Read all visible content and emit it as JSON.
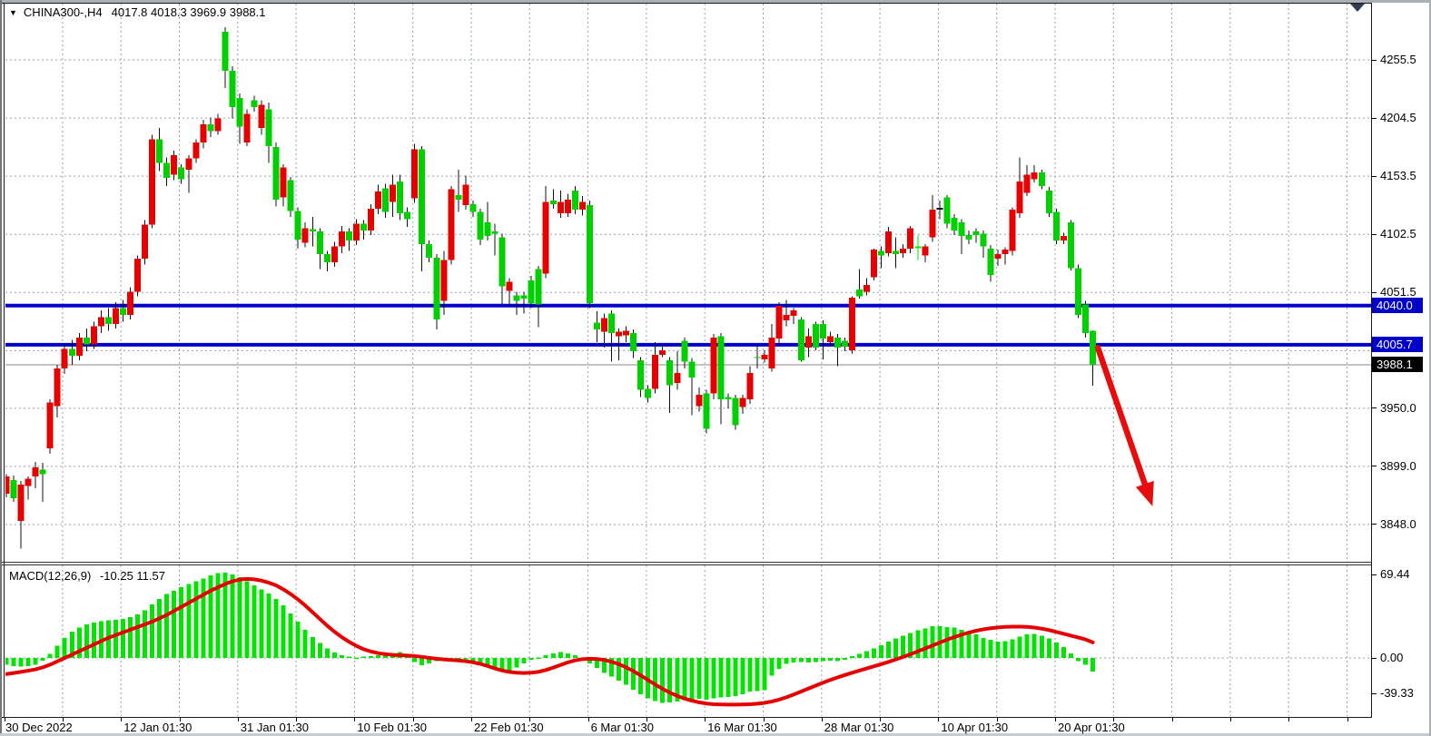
{
  "window": {
    "chart_title": {
      "symbol_period": "CHINA300-,H4",
      "ohlc": "4017.8 4018.3 3969.9 3988.1"
    },
    "indicator_label": {
      "name": "MACD(12,26,9)",
      "values": "-10.25 11.57"
    },
    "dropdown_triangle_icon": "▼"
  },
  "price_axis": {
    "labels": [
      {
        "text": "4255.5",
        "price": 4255.5
      },
      {
        "text": "4204.5",
        "price": 4204.5
      },
      {
        "text": "4153.5",
        "price": 4153.5
      },
      {
        "text": "4102.5",
        "price": 4102.5
      },
      {
        "text": "4051.5",
        "price": 4051.5
      },
      {
        "text": "3950.0",
        "price": 3950.0
      },
      {
        "text": "3899.0",
        "price": 3899.0
      },
      {
        "text": "3848.0",
        "price": 3848.0
      }
    ],
    "badges": [
      {
        "text": "4040.0",
        "price": 4040.0,
        "bg": "#0000C8",
        "fg": "#ffffff"
      },
      {
        "text": "4005.7",
        "price": 4005.7,
        "bg": "#0000C8",
        "fg": "#ffffff"
      },
      {
        "text": "3988.1",
        "price": 3988.1,
        "bg": "#000000",
        "fg": "#ffffff"
      }
    ]
  },
  "macd_axis": {
    "labels": [
      {
        "text": "69.44",
        "value": 69.44
      },
      {
        "text": "0.00",
        "value": 0.0
      },
      {
        "text": "-39.33",
        "value": -39.33
      }
    ]
  },
  "time_axis": {
    "origin_label": "30 Dec 2022",
    "tick_labels": [
      "12 Jan 01:30",
      "31 Jan 01:30",
      "10 Feb 01:30",
      "22 Feb 01:30",
      "6 Mar 01:30",
      "16 Mar 01:30",
      "28 Mar 01:30",
      "10 Apr 01:30",
      "20 Apr 01:30"
    ]
  },
  "chart_data": {
    "type": "candlestick",
    "symbol": "CHINA300-",
    "timeframe": "H4",
    "title": "CHINA300-,H4",
    "last_quote": {
      "open": 4017.8,
      "high": 4018.3,
      "low": 3969.9,
      "close": 3988.1
    },
    "ylim": [
      3814,
      4290
    ],
    "price_gridlines": [
      4255.5,
      4204.5,
      4153.5,
      4102.5,
      4051.5,
      4000.5,
      3950.0,
      3899.0,
      3848.0
    ],
    "grid": "dashed",
    "color_convention": "red body = bullish, green body = bearish (Chinese convention)",
    "horizontal_levels": [
      {
        "price": 4040.0,
        "color": "#0000C8"
      },
      {
        "price": 4005.7,
        "color": "#0000C8"
      }
    ],
    "current_price": 3988.1,
    "trend_arrow": {
      "from": {
        "index": 149.7,
        "price": 4003
      },
      "to": {
        "index": 157.2,
        "price": 3864
      },
      "color": "#E60D0D",
      "direction": "down"
    },
    "candles": [
      [
        3875,
        3892,
        3872,
        3890
      ],
      [
        3887,
        3891,
        3868,
        3871
      ],
      [
        3851,
        3886,
        3827,
        3883
      ],
      [
        3882,
        3890,
        3870,
        3888
      ],
      [
        3890,
        3903,
        3880,
        3898
      ],
      [
        3896,
        3902,
        3868,
        3892
      ],
      [
        3915,
        3958,
        3910,
        3955
      ],
      [
        3952,
        3988,
        3942,
        3985
      ],
      [
        3985,
        4006,
        3980,
        4002
      ],
      [
        4002,
        4010,
        3988,
        3996
      ],
      [
        3996,
        4016,
        3992,
        4012
      ],
      [
        4012,
        4020,
        4000,
        4006
      ],
      [
        4006,
        4026,
        4002,
        4022
      ],
      [
        4022,
        4036,
        4016,
        4030
      ],
      [
        4030,
        4038,
        4018,
        4024
      ],
      [
        4024,
        4043,
        4020,
        4038
      ],
      [
        4038,
        4045,
        4026,
        4032
      ],
      [
        4032,
        4056,
        4028,
        4052
      ],
      [
        4052,
        4084,
        4048,
        4081
      ],
      [
        4081,
        4115,
        4076,
        4111
      ],
      [
        4111,
        4190,
        4108,
        4186
      ],
      [
        4186,
        4196,
        4158,
        4165
      ],
      [
        4165,
        4170,
        4145,
        4152
      ],
      [
        4155,
        4176,
        4150,
        4172
      ],
      [
        4161,
        4164,
        4147,
        4151
      ],
      [
        4159,
        4172,
        4139,
        4169
      ],
      [
        4169,
        4186,
        4165,
        4183
      ],
      [
        4183,
        4203,
        4178,
        4199
      ],
      [
        4199,
        4205,
        4188,
        4193
      ],
      [
        4193,
        4208,
        4190,
        4204
      ],
      [
        4280,
        4284,
        4231,
        4246
      ],
      [
        4246,
        4250,
        4204,
        4214
      ],
      [
        4222,
        4226,
        4182,
        4197
      ],
      [
        4183,
        4212,
        4180,
        4208
      ],
      [
        4220,
        4224,
        4210,
        4214
      ],
      [
        4196,
        4220,
        4190,
        4216
      ],
      [
        4212,
        4218,
        4165,
        4180
      ],
      [
        4179,
        4183,
        4127,
        4133
      ],
      [
        4135,
        4164,
        4127,
        4161
      ],
      [
        4150,
        4153,
        4118,
        4123
      ],
      [
        4123,
        4126,
        4090,
        4098
      ],
      [
        4095,
        4113,
        4091,
        4108
      ],
      [
        4107,
        4118,
        4092,
        4105
      ],
      [
        4105,
        4108,
        4072,
        4085
      ],
      [
        4085,
        4088,
        4070,
        4078
      ],
      [
        4078,
        4096,
        4074,
        4092
      ],
      [
        4092,
        4110,
        4086,
        4105
      ],
      [
        4105,
        4108,
        4088,
        4097
      ],
      [
        4097,
        4116,
        4093,
        4112
      ],
      [
        4112,
        4115,
        4098,
        4106
      ],
      [
        4106,
        4129,
        4102,
        4125
      ],
      [
        4125,
        4146,
        4120,
        4140
      ],
      [
        4143,
        4147,
        4117,
        4122
      ],
      [
        4131,
        4155,
        4118,
        4146
      ],
      [
        4149,
        4155,
        4115,
        4121
      ],
      [
        4122,
        4126,
        4109,
        4116
      ],
      [
        4134,
        4182,
        4130,
        4177
      ],
      [
        4177,
        4180,
        4070,
        4094
      ],
      [
        4094,
        4097,
        4078,
        4082
      ],
      [
        4082,
        4085,
        4019,
        4028
      ],
      [
        4044,
        4088,
        4032,
        4080
      ],
      [
        4080,
        4145,
        4076,
        4142
      ],
      [
        4137,
        4159,
        4122,
        4133
      ],
      [
        4128,
        4154,
        4124,
        4146
      ],
      [
        4129,
        4132,
        4118,
        4122
      ],
      [
        4122,
        4125,
        4093,
        4098
      ],
      [
        4113,
        4131,
        4097,
        4101
      ],
      [
        4105,
        4112,
        4084,
        4103
      ],
      [
        4100,
        4103,
        4041,
        4057
      ],
      [
        4053,
        4064,
        4040,
        4061
      ],
      [
        4049,
        4052,
        4032,
        4044
      ],
      [
        4049,
        4052,
        4033,
        4046
      ],
      [
        4062,
        4066,
        4038,
        4042
      ],
      [
        4072,
        4075,
        4021,
        4041
      ],
      [
        4068,
        4145,
        4064,
        4131
      ],
      [
        4132,
        4142,
        4125,
        4129
      ],
      [
        4121,
        4141,
        4117,
        4131
      ],
      [
        4121,
        4138,
        4118,
        4133
      ],
      [
        4141,
        4145,
        4120,
        4124
      ],
      [
        4124,
        4136,
        4119,
        4131
      ],
      [
        4128,
        4132,
        4038,
        4042
      ],
      [
        4025,
        4035,
        4008,
        4019
      ],
      [
        4017,
        4033,
        4003,
        4029
      ],
      [
        4033,
        4036,
        3991,
        4016
      ],
      [
        4013,
        4020,
        3992,
        4017
      ],
      [
        4014,
        4022,
        4008,
        4018
      ],
      [
        4016,
        4019,
        3994,
        4000
      ],
      [
        3992,
        3995,
        3960,
        3966
      ],
      [
        3967,
        3970,
        3955,
        3959
      ],
      [
        3967,
        4008,
        3963,
        3997
      ],
      [
        3997,
        4005,
        3995,
        4001
      ],
      [
        3992,
        3995,
        3946,
        3970
      ],
      [
        3972,
        4000,
        3966,
        3981
      ],
      [
        4009,
        4012,
        3985,
        3991
      ],
      [
        3991,
        3994,
        3944,
        3977
      ],
      [
        3952,
        3968,
        3947,
        3962
      ],
      [
        3963,
        3966,
        3928,
        3932
      ],
      [
        3963,
        4015,
        3958,
        4012
      ],
      [
        4013,
        4016,
        3936,
        3958
      ],
      [
        3960,
        3963,
        3950,
        3958
      ],
      [
        3959,
        3962,
        3931,
        3935
      ],
      [
        3951,
        3962,
        3945,
        3959
      ],
      [
        3958,
        3987,
        3954,
        3981
      ],
      [
        3995,
        4005,
        3985,
        3994
      ],
      [
        3993,
        4001,
        3990,
        3997
      ],
      [
        3985,
        4024,
        3982,
        4012
      ],
      [
        4011,
        4043,
        4007,
        4040
      ],
      [
        4027,
        4045,
        4022,
        4032
      ],
      [
        4031,
        4038,
        4024,
        4036
      ],
      [
        4028,
        4030,
        3991,
        3992
      ],
      [
        4003,
        4020,
        3995,
        4013
      ],
      [
        4024,
        4026,
        4001,
        4003
      ],
      [
        4024,
        4027,
        3993,
        4011
      ],
      [
        4008,
        4017,
        4004,
        4013
      ],
      [
        4012,
        4015,
        3987,
        4003
      ],
      [
        4009,
        4012,
        4000,
        4004
      ],
      [
        4001,
        4048,
        3998,
        4047
      ],
      [
        4054,
        4072,
        4046,
        4048
      ],
      [
        4052,
        4064,
        4049,
        4058
      ],
      [
        4065,
        4090,
        4062,
        4089
      ],
      [
        4088,
        4092,
        4073,
        4084
      ],
      [
        4086,
        4109,
        4083,
        4105
      ],
      [
        4088,
        4100,
        4073,
        4085
      ],
      [
        4086,
        4094,
        4082,
        4090
      ],
      [
        4090,
        4110,
        4086,
        4108
      ],
      [
        4091,
        4102,
        4080,
        4091
      ],
      [
        4084,
        4094,
        4078,
        4092
      ],
      [
        4100,
        4137,
        4096,
        4124
      ],
      [
        4125,
        4132,
        4116,
        4125
      ],
      [
        4135,
        4137,
        4108,
        4112
      ],
      [
        4117,
        4120,
        4102,
        4106
      ],
      [
        4113,
        4116,
        4085,
        4101
      ],
      [
        4102,
        4106,
        4094,
        4098
      ],
      [
        4105,
        4108,
        4095,
        4102
      ],
      [
        4103,
        4106,
        4082,
        4092
      ],
      [
        4090,
        4093,
        4061,
        4067
      ],
      [
        4081,
        4089,
        4075,
        4085
      ],
      [
        4085,
        4091,
        4076,
        4089
      ],
      [
        4088,
        4126,
        4084,
        4124
      ],
      [
        4121,
        4170,
        4117,
        4149
      ],
      [
        4139,
        4163,
        4136,
        4155
      ],
      [
        4151,
        4163,
        4148,
        4157
      ],
      [
        4157,
        4159,
        4142,
        4145
      ],
      [
        4141,
        4144,
        4118,
        4121
      ],
      [
        4122,
        4125,
        4094,
        4097
      ],
      [
        4097,
        4104,
        4094,
        4101
      ],
      [
        4113,
        4115,
        4071,
        4073
      ],
      [
        4073,
        4076,
        4029,
        4032
      ],
      [
        4041,
        4044,
        4012,
        4016
      ],
      [
        4017.8,
        4018.3,
        3969.9,
        3988.1
      ]
    ],
    "doji_colors": {
      "125": "#00E400",
      "128": "#111111"
    },
    "macd": {
      "name": "MACD(12,26,9)",
      "params": [
        12,
        26,
        9
      ],
      "main_last": -10.25,
      "signal_last": 11.57,
      "axis_range": [
        -39.33,
        69.44
      ],
      "histogram": [
        -5,
        -6,
        -6.5,
        -6,
        -5,
        -2,
        3,
        9,
        15,
        19.5,
        22.5,
        25,
        26.5,
        27.5,
        28,
        28.5,
        29,
        30.5,
        32.5,
        35.5,
        40,
        44,
        47.5,
        50,
        52.5,
        55,
        57,
        59,
        61.5,
        63,
        63.5,
        62,
        60,
        57,
        54,
        51,
        48,
        44,
        39,
        33,
        27,
        21,
        15.5,
        11,
        7,
        4,
        2,
        1,
        0.5,
        1,
        1.5,
        2,
        2.5,
        2,
        4.5,
        2,
        -3,
        -5.5,
        -4,
        -2.5,
        -1,
        -0.5,
        -0.5,
        -1,
        -2,
        -4.5,
        -6.5,
        -8.5,
        -10,
        -9.5,
        -7,
        -4,
        -1.5,
        0.5,
        2,
        3.5,
        4.5,
        3.5,
        2,
        -1,
        -4,
        -7.5,
        -11,
        -14,
        -17,
        -20,
        -23.5,
        -27,
        -30,
        -32,
        -33.5,
        -33,
        -32.5,
        -31.5,
        -31,
        -30.5,
        -31,
        -30,
        -29.5,
        -29,
        -28.5,
        -27,
        -25,
        -24.5,
        -24,
        -13,
        -8,
        -4.5,
        -3.5,
        -3,
        -3.5,
        -3,
        -2.5,
        -2,
        -2.5,
        -1.5,
        1.5,
        3,
        5,
        7,
        9.5,
        12,
        14.5,
        16.5,
        18.5,
        20.5,
        22,
        23.5,
        23.5,
        23,
        22.5,
        21,
        19,
        17.5,
        15,
        13.5,
        12,
        12.5,
        14,
        16,
        17.5,
        18,
        16.5,
        14.5,
        11.5,
        8,
        3.5,
        -2.5,
        -5,
        -10.25
      ],
      "signal": [
        -12,
        -11.2,
        -10.4,
        -9.5,
        -8.5,
        -7,
        -5,
        -2.5,
        0,
        2.5,
        5,
        7.5,
        10,
        12.5,
        15,
        17,
        19,
        21,
        23,
        25,
        27,
        29.5,
        32,
        35,
        38,
        41,
        44,
        47,
        50,
        52.5,
        55,
        57,
        58.3,
        58.8,
        58.5,
        57.5,
        56,
        54,
        51,
        47.5,
        43.5,
        39,
        34,
        29,
        24,
        19.5,
        15.5,
        12,
        9,
        6.5,
        4.8,
        3.6,
        2.8,
        2.3,
        2.0,
        1.8,
        1.4,
        0.8,
        0.1,
        -0.6,
        -1.1,
        -1.5,
        -1.9,
        -2.4,
        -3.2,
        -4.4,
        -6,
        -7.8,
        -9.3,
        -10.4,
        -11,
        -11.2,
        -11,
        -10.3,
        -9,
        -7.2,
        -5.2,
        -3.3,
        -1.8,
        -0.9,
        -0.6,
        -0.8,
        -1.5,
        -2.8,
        -4.6,
        -7,
        -9.8,
        -13,
        -16.4,
        -19.8,
        -23,
        -25.8,
        -28.2,
        -30.2,
        -31.8,
        -33,
        -33.9,
        -34.4,
        -34.6,
        -34.7,
        -34.7,
        -34.6,
        -34.4,
        -34,
        -33.4,
        -32.4,
        -31,
        -29.2,
        -27.2,
        -25,
        -22.8,
        -20.6,
        -18.4,
        -16.4,
        -14.5,
        -12.7,
        -11,
        -9.4,
        -7.8,
        -6.2,
        -4.6,
        -2.9,
        -1.1,
        0.8,
        2.8,
        4.9,
        7,
        9.2,
        11.4,
        13.5,
        15.5,
        17.3,
        18.9,
        20.2,
        21.3,
        22.1,
        22.7,
        23.1,
        23.3,
        23.3,
        23.1,
        22.6,
        21.8,
        20.7,
        19.4,
        18,
        16.6,
        15.2,
        13.8,
        11.57
      ]
    }
  },
  "colors": {
    "bull_body": "#E60000",
    "bear_body": "#00CF00",
    "wick": "#111111",
    "histogram": "#00E400",
    "signal_line": "#E60000",
    "level_line": "#0000C8",
    "current_price_line": "#8a8a8a",
    "gridline": "#93A3B1",
    "arrow": "#E60D0D",
    "background": "#ffffff"
  }
}
